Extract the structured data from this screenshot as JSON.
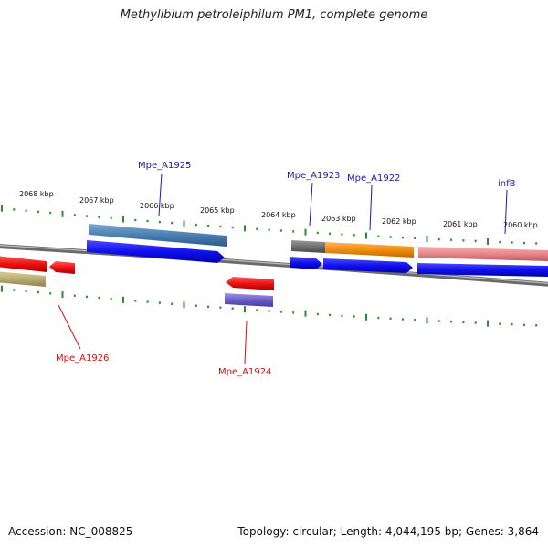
{
  "title": "Methylibium petroleiphilum PM1, complete genome",
  "footer": {
    "accession": "Accession: NC_008825",
    "topology": "Topology: circular; Length: 4,044,195 bp; Genes: 3,864"
  },
  "ruler_labels": [
    "2068 kbp",
    "2067 kbp",
    "2066 kbp",
    "2065 kbp",
    "2064 kbp",
    "2063 kbp",
    "2062 kbp",
    "2061 kbp",
    "2060 kbp"
  ],
  "gene_labels": {
    "top": [
      "Mpe_A1925",
      "Mpe_A1923",
      "Mpe_A1922",
      "infB"
    ],
    "bottom": [
      "Mpe_A1926",
      "Mpe_A1924"
    ]
  },
  "colors": {
    "backbone": "#8a8a8a",
    "tick": "#2e8b2e",
    "forward_arrow": "#1010ee",
    "reverse_arrow": "#ee1111",
    "top_label": "#1a1aa8",
    "bottom_label": "#cc1111",
    "feature_steelblue": "#4a7fb0",
    "feature_gray": "#6e6e6e",
    "feature_orange": "#f28c10",
    "feature_pink": "#e8868a",
    "feature_olive": "#b8ad72",
    "feature_purple": "#6a5ec8"
  }
}
